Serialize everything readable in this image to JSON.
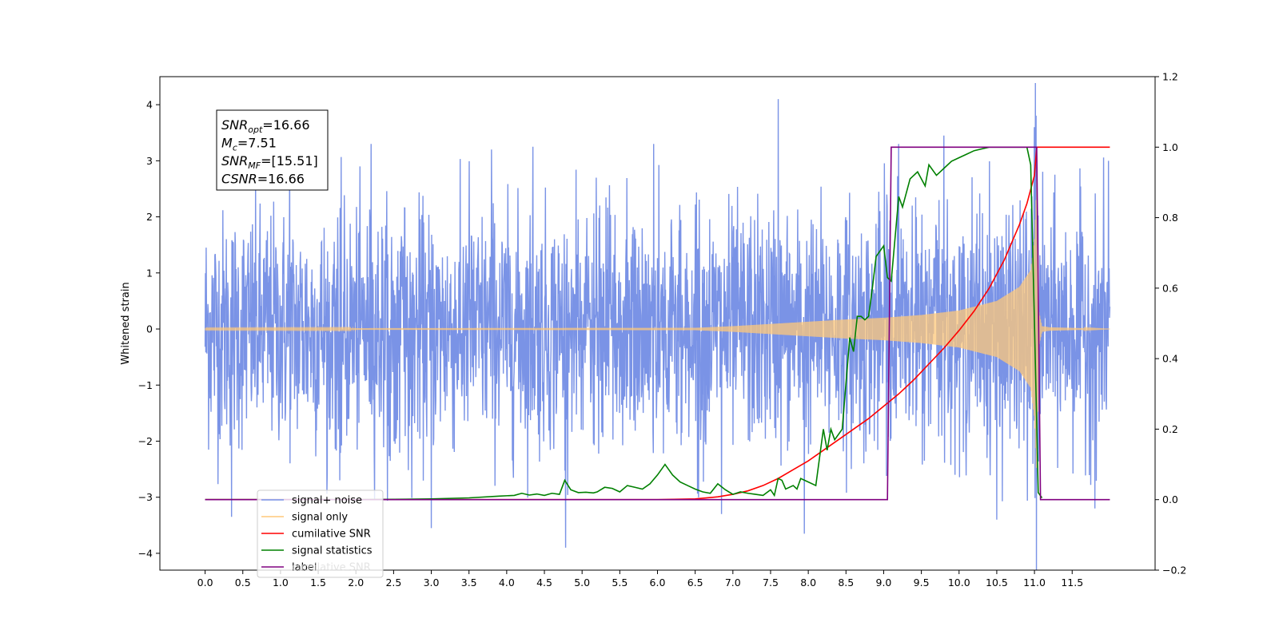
{
  "chart_data": {
    "type": "line",
    "title": "",
    "xlabel": "",
    "ylabel": "Whitened strain",
    "xlim": [
      -0.6,
      12.6
    ],
    "ylim": [
      -4.3,
      4.5
    ],
    "y2lim": [
      -0.2,
      1.2
    ],
    "x_ticks": [
      0.0,
      0.5,
      1.0,
      1.5,
      2.0,
      2.5,
      3.0,
      3.5,
      4.0,
      4.5,
      5.0,
      5.5,
      6.0,
      6.5,
      7.0,
      7.5,
      8.0,
      8.5,
      9.0,
      9.5,
      10.0,
      10.5,
      11.0,
      11.5
    ],
    "x_tick_labels": [
      "0.0",
      "0.5",
      "1.0",
      "1.5",
      "2.0",
      "2.5",
      "3.0",
      "3.5",
      "4.0",
      "4.5",
      "5.0",
      "5.5",
      "6.0",
      "6.5",
      "7.0",
      "7.5",
      "8.0",
      "8.5",
      "9.0",
      "9.5",
      "10.0",
      "10.5",
      "11.0",
      "11.5"
    ],
    "y_ticks": [
      4,
      3,
      2,
      1,
      0,
      -1,
      -2,
      -3,
      -4
    ],
    "y_tick_labels": [
      "4",
      "3",
      "2",
      "1",
      "0",
      "−1",
      "−2",
      "−3",
      "−4"
    ],
    "y2_ticks": [
      1.2,
      1.0,
      0.8,
      0.6,
      0.4,
      0.2,
      0.0,
      -0.2
    ],
    "y2_tick_labels": [
      "1.2",
      "1.0",
      "0.8",
      "0.6",
      "0.4",
      "0.2",
      "0.0",
      "−0.2"
    ],
    "grid": false,
    "legend_position": "lower-left",
    "annotation": {
      "lines": [
        {
          "base": "SNR",
          "sub": "opt",
          "rest": "=16.66"
        },
        {
          "base": "M",
          "sub": "c",
          "rest": "=7.51"
        },
        {
          "base": "SNR",
          "sub": "MF",
          "rest": "=[15.51]"
        },
        {
          "base": "CSNR",
          "sub": "",
          "rest": "=16.66"
        }
      ]
    },
    "series": [
      {
        "name": "signal+ noise",
        "axis": "left",
        "color": "#7a93e6",
        "kind": "noise",
        "x_range": [
          0.0,
          12.0
        ],
        "noise_sigma": 1.05,
        "spikes": [
          {
            "x": 0.35,
            "y": -3.35
          },
          {
            "x": 1.12,
            "y": 3.15
          },
          {
            "x": 2.2,
            "y": 3.3
          },
          {
            "x": 3.0,
            "y": -3.55
          },
          {
            "x": 3.8,
            "y": 3.2
          },
          {
            "x": 4.35,
            "y": 3.25
          },
          {
            "x": 4.78,
            "y": -3.9
          },
          {
            "x": 5.95,
            "y": 3.3
          },
          {
            "x": 6.85,
            "y": -3.3
          },
          {
            "x": 7.6,
            "y": 4.1
          },
          {
            "x": 7.95,
            "y": -3.65
          },
          {
            "x": 9.2,
            "y": 3.3
          },
          {
            "x": 9.8,
            "y": 3.45
          },
          {
            "x": 10.5,
            "y": -3.4
          },
          {
            "x": 11.0,
            "y": 3.6
          },
          {
            "x": 11.8,
            "y": -3.2
          },
          {
            "x": 11.98,
            "y": 3.0
          }
        ]
      },
      {
        "name": "signal only",
        "axis": "left",
        "color": "#ffc87a",
        "kind": "chirp",
        "x_range": [
          0.0,
          12.0
        ],
        "envelope": [
          {
            "x": 0.0,
            "y": 0.01
          },
          {
            "x": 6.5,
            "y": 0.02
          },
          {
            "x": 7.0,
            "y": 0.05
          },
          {
            "x": 7.5,
            "y": 0.09
          },
          {
            "x": 8.0,
            "y": 0.13
          },
          {
            "x": 8.5,
            "y": 0.17
          },
          {
            "x": 9.0,
            "y": 0.2
          },
          {
            "x": 9.5,
            "y": 0.25
          },
          {
            "x": 10.0,
            "y": 0.33
          },
          {
            "x": 10.5,
            "y": 0.5
          },
          {
            "x": 10.8,
            "y": 0.75
          },
          {
            "x": 10.95,
            "y": 1.05
          },
          {
            "x": 11.0,
            "y": 1.6
          },
          {
            "x": 11.03,
            "y": 2.65
          },
          {
            "x": 11.06,
            "y": 0.3
          },
          {
            "x": 11.1,
            "y": 0.05
          },
          {
            "x": 11.2,
            "y": 0.03
          },
          {
            "x": 12.0,
            "y": 0.0
          }
        ]
      },
      {
        "name": "cumilative SNR",
        "axis": "right",
        "color": "#ff0000",
        "kind": "line",
        "x": [
          0.0,
          6.0,
          6.5,
          6.8,
          7.0,
          7.2,
          7.4,
          7.6,
          7.8,
          8.0,
          8.2,
          8.4,
          8.6,
          8.8,
          9.0,
          9.2,
          9.4,
          9.6,
          9.8,
          10.0,
          10.2,
          10.4,
          10.6,
          10.8,
          10.9,
          11.0,
          11.03,
          11.06,
          11.5,
          12.0
        ],
        "y": [
          0.0,
          0.0,
          0.002,
          0.008,
          0.015,
          0.025,
          0.04,
          0.06,
          0.085,
          0.11,
          0.14,
          0.17,
          0.2,
          0.23,
          0.265,
          0.3,
          0.34,
          0.385,
          0.43,
          0.48,
          0.535,
          0.6,
          0.68,
          0.78,
          0.84,
          0.92,
          1.0,
          1.0,
          1.0,
          1.0
        ]
      },
      {
        "name": "signal statistics",
        "axis": "right",
        "color": "#008000",
        "kind": "line",
        "x": [
          0.0,
          1.0,
          2.0,
          3.0,
          3.5,
          3.9,
          4.1,
          4.2,
          4.3,
          4.4,
          4.5,
          4.6,
          4.7,
          4.77,
          4.85,
          4.95,
          5.05,
          5.15,
          5.2,
          5.3,
          5.4,
          5.5,
          5.6,
          5.7,
          5.8,
          5.9,
          6.0,
          6.05,
          6.1,
          6.2,
          6.3,
          6.4,
          6.5,
          6.6,
          6.7,
          6.8,
          6.9,
          7.0,
          7.1,
          7.2,
          7.3,
          7.4,
          7.5,
          7.55,
          7.6,
          7.65,
          7.7,
          7.8,
          7.85,
          7.9,
          8.0,
          8.1,
          8.2,
          8.25,
          8.3,
          8.35,
          8.45,
          8.55,
          8.6,
          8.65,
          8.7,
          8.75,
          8.8,
          8.85,
          8.9,
          9.0,
          9.05,
          9.1,
          9.2,
          9.25,
          9.35,
          9.45,
          9.55,
          9.6,
          9.7,
          9.75,
          9.8,
          9.9,
          10.0,
          10.1,
          10.2,
          10.3,
          10.4,
          10.5,
          10.6,
          10.7,
          10.8,
          10.9,
          10.95,
          11.0,
          11.05,
          11.1
        ],
        "y": [
          0.0,
          0.0,
          0.0,
          0.002,
          0.005,
          0.01,
          0.012,
          0.018,
          0.013,
          0.016,
          0.012,
          0.018,
          0.015,
          0.055,
          0.028,
          0.02,
          0.021,
          0.019,
          0.022,
          0.035,
          0.032,
          0.022,
          0.04,
          0.035,
          0.03,
          0.045,
          0.07,
          0.085,
          0.1,
          0.07,
          0.05,
          0.04,
          0.03,
          0.022,
          0.018,
          0.045,
          0.028,
          0.015,
          0.022,
          0.018,
          0.015,
          0.012,
          0.028,
          0.012,
          0.06,
          0.055,
          0.03,
          0.04,
          0.03,
          0.06,
          0.05,
          0.04,
          0.2,
          0.14,
          0.2,
          0.17,
          0.2,
          0.46,
          0.42,
          0.52,
          0.52,
          0.51,
          0.52,
          0.6,
          0.69,
          0.72,
          0.63,
          0.62,
          0.86,
          0.83,
          0.91,
          0.93,
          0.89,
          0.95,
          0.92,
          0.93,
          0.94,
          0.96,
          0.97,
          0.98,
          0.99,
          0.995,
          1.0,
          1.0,
          1.0,
          1.0,
          1.0,
          1.0,
          0.95,
          0.5,
          0.02,
          0.005
        ]
      },
      {
        "name": "label",
        "axis": "right",
        "color": "#800080",
        "kind": "line",
        "x": [
          0.0,
          9.05,
          9.1,
          11.03,
          11.08,
          12.0
        ],
        "y": [
          0.0,
          0.0,
          1.0,
          1.0,
          0.0,
          0.0
        ]
      }
    ],
    "legend_extra_text": "cumilative SNR"
  }
}
